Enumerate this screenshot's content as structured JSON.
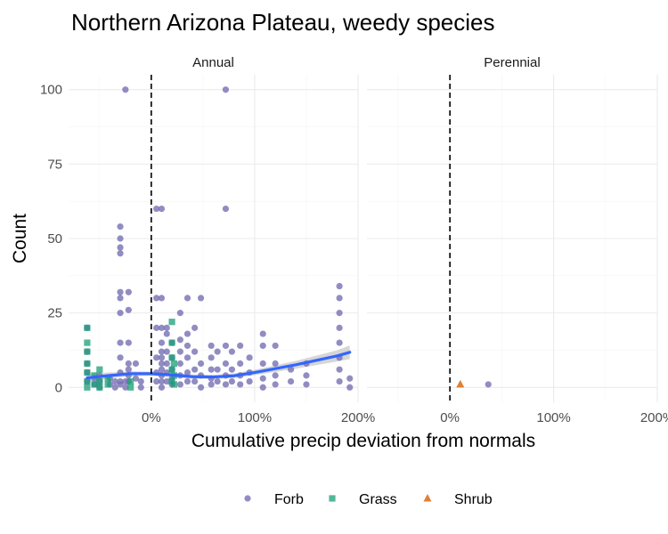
{
  "chart_data": {
    "type": "scatter",
    "title": "Northern Arizona Plateau, weedy species",
    "xlabel": "Cumulative precip deviation from normals",
    "ylabel": "Count",
    "xlim": [
      -0.8,
      2.0
    ],
    "ylim": [
      -5,
      105
    ],
    "x_ticks": [
      0,
      1,
      2
    ],
    "x_tick_labels": [
      "0%",
      "100%",
      "200%"
    ],
    "y_ticks": [
      0,
      25,
      50,
      75,
      100
    ],
    "y_tick_labels": [
      "0",
      "25",
      "50",
      "75",
      "100"
    ],
    "reference_line_x": 0,
    "grid": true,
    "legend_position": "bottom",
    "colors": {
      "Forb": "#7570b3",
      "Grass": "#1b9e77",
      "Shrub": "#d95f02",
      "smooth": "#3366ff",
      "ribbon": "#999999"
    },
    "legend": [
      {
        "name": "Forb",
        "shape": "circle"
      },
      {
        "name": "Grass",
        "shape": "square"
      },
      {
        "name": "Shrub",
        "shape": "triangle"
      }
    ],
    "panels": [
      {
        "label": "Annual",
        "points": {
          "Forb": [
            [
              -0.62,
              2
            ],
            [
              -0.62,
              5
            ],
            [
              -0.62,
              8
            ],
            [
              -0.62,
              12
            ],
            [
              -0.62,
              20
            ],
            [
              -0.55,
              1
            ],
            [
              -0.55,
              3
            ],
            [
              -0.5,
              0
            ],
            [
              -0.5,
              2
            ],
            [
              -0.5,
              4
            ],
            [
              -0.4,
              1
            ],
            [
              -0.4,
              3
            ],
            [
              -0.35,
              0
            ],
            [
              -0.35,
              2
            ],
            [
              -0.3,
              1
            ],
            [
              -0.3,
              2
            ],
            [
              -0.3,
              5
            ],
            [
              -0.3,
              10
            ],
            [
              -0.3,
              15
            ],
            [
              -0.3,
              25
            ],
            [
              -0.3,
              30
            ],
            [
              -0.3,
              32
            ],
            [
              -0.3,
              45
            ],
            [
              -0.3,
              47
            ],
            [
              -0.3,
              50
            ],
            [
              -0.3,
              54
            ],
            [
              -0.25,
              0
            ],
            [
              -0.25,
              2
            ],
            [
              -0.25,
              100
            ],
            [
              -0.22,
              2
            ],
            [
              -0.22,
              4
            ],
            [
              -0.22,
              6
            ],
            [
              -0.22,
              8
            ],
            [
              -0.22,
              15
            ],
            [
              -0.22,
              26
            ],
            [
              -0.22,
              32
            ],
            [
              -0.15,
              3
            ],
            [
              -0.15,
              8
            ],
            [
              -0.1,
              0
            ],
            [
              -0.1,
              2
            ],
            [
              0.05,
              2
            ],
            [
              0.05,
              5
            ],
            [
              0.05,
              10
            ],
            [
              0.05,
              20
            ],
            [
              0.05,
              30
            ],
            [
              0.05,
              60
            ],
            [
              0.1,
              0
            ],
            [
              0.1,
              2
            ],
            [
              0.1,
              4
            ],
            [
              0.1,
              6
            ],
            [
              0.1,
              8
            ],
            [
              0.1,
              10
            ],
            [
              0.1,
              12
            ],
            [
              0.1,
              15
            ],
            [
              0.1,
              20
            ],
            [
              0.1,
              30
            ],
            [
              0.1,
              60
            ],
            [
              0.15,
              2
            ],
            [
              0.15,
              5
            ],
            [
              0.15,
              8
            ],
            [
              0.15,
              12
            ],
            [
              0.15,
              18
            ],
            [
              0.15,
              20
            ],
            [
              0.2,
              1
            ],
            [
              0.2,
              3
            ],
            [
              0.2,
              6
            ],
            [
              0.2,
              10
            ],
            [
              0.2,
              15
            ],
            [
              0.28,
              1
            ],
            [
              0.28,
              4
            ],
            [
              0.28,
              8
            ],
            [
              0.28,
              12
            ],
            [
              0.28,
              16
            ],
            [
              0.28,
              25
            ],
            [
              0.35,
              2
            ],
            [
              0.35,
              5
            ],
            [
              0.35,
              10
            ],
            [
              0.35,
              14
            ],
            [
              0.35,
              18
            ],
            [
              0.35,
              30
            ],
            [
              0.42,
              2
            ],
            [
              0.42,
              6
            ],
            [
              0.42,
              12
            ],
            [
              0.42,
              20
            ],
            [
              0.48,
              0
            ],
            [
              0.48,
              4
            ],
            [
              0.48,
              8
            ],
            [
              0.48,
              30
            ],
            [
              0.58,
              1
            ],
            [
              0.58,
              3
            ],
            [
              0.58,
              6
            ],
            [
              0.58,
              10
            ],
            [
              0.58,
              14
            ],
            [
              0.64,
              2
            ],
            [
              0.64,
              6
            ],
            [
              0.64,
              12
            ],
            [
              0.72,
              1
            ],
            [
              0.72,
              4
            ],
            [
              0.72,
              8
            ],
            [
              0.72,
              14
            ],
            [
              0.72,
              60
            ],
            [
              0.72,
              100
            ],
            [
              0.78,
              2
            ],
            [
              0.78,
              6
            ],
            [
              0.78,
              12
            ],
            [
              0.86,
              1
            ],
            [
              0.86,
              4
            ],
            [
              0.86,
              8
            ],
            [
              0.86,
              14
            ],
            [
              0.95,
              2
            ],
            [
              0.95,
              5
            ],
            [
              0.95,
              10
            ],
            [
              1.08,
              0
            ],
            [
              1.08,
              3
            ],
            [
              1.08,
              8
            ],
            [
              1.08,
              14
            ],
            [
              1.08,
              18
            ],
            [
              1.2,
              1
            ],
            [
              1.2,
              4
            ],
            [
              1.2,
              8
            ],
            [
              1.2,
              14
            ],
            [
              1.35,
              2
            ],
            [
              1.35,
              6
            ],
            [
              1.5,
              1
            ],
            [
              1.5,
              4
            ],
            [
              1.5,
              8
            ],
            [
              1.82,
              2
            ],
            [
              1.82,
              6
            ],
            [
              1.82,
              10
            ],
            [
              1.82,
              15
            ],
            [
              1.82,
              20
            ],
            [
              1.82,
              25
            ],
            [
              1.82,
              30
            ],
            [
              1.82,
              34
            ],
            [
              1.92,
              0
            ],
            [
              1.92,
              3
            ]
          ],
          "Grass": [
            [
              -0.62,
              0
            ],
            [
              -0.62,
              2
            ],
            [
              -0.62,
              5
            ],
            [
              -0.62,
              8
            ],
            [
              -0.62,
              12
            ],
            [
              -0.62,
              15
            ],
            [
              -0.62,
              20
            ],
            [
              -0.55,
              1
            ],
            [
              -0.55,
              4
            ],
            [
              -0.5,
              0
            ],
            [
              -0.5,
              2
            ],
            [
              -0.5,
              6
            ],
            [
              -0.42,
              1
            ],
            [
              -0.42,
              3
            ],
            [
              -0.2,
              0
            ],
            [
              -0.2,
              2
            ],
            [
              0.2,
              2
            ],
            [
              0.2,
              6
            ],
            [
              0.2,
              10
            ],
            [
              0.2,
              15
            ],
            [
              0.2,
              22
            ],
            [
              0.22,
              1
            ],
            [
              0.22,
              4
            ],
            [
              0.22,
              8
            ]
          ],
          "Shrub": []
        },
        "smooth": {
          "x": [
            -0.62,
            -0.4,
            -0.2,
            0,
            0.2,
            0.4,
            0.6,
            0.8,
            1.0,
            1.2,
            1.4,
            1.6,
            1.8,
            1.92
          ],
          "y": [
            3.2,
            4.0,
            4.6,
            4.6,
            4.2,
            3.6,
            3.5,
            3.9,
            5.0,
            6.3,
            7.6,
            9.1,
            10.6,
            11.8
          ],
          "lower": [
            1.8,
            3.0,
            3.8,
            3.9,
            3.5,
            2.9,
            2.8,
            3.1,
            4.1,
            5.2,
            6.3,
            7.5,
            8.7,
            9.5
          ],
          "upper": [
            4.6,
            5.0,
            5.4,
            5.3,
            4.9,
            4.3,
            4.2,
            4.7,
            5.9,
            7.4,
            8.9,
            10.7,
            12.5,
            14.1
          ]
        }
      },
      {
        "label": "Perennial",
        "points": {
          "Forb": [
            [
              0.37,
              1
            ]
          ],
          "Grass": [],
          "Shrub": [
            [
              0.1,
              1
            ]
          ]
        }
      }
    ]
  }
}
